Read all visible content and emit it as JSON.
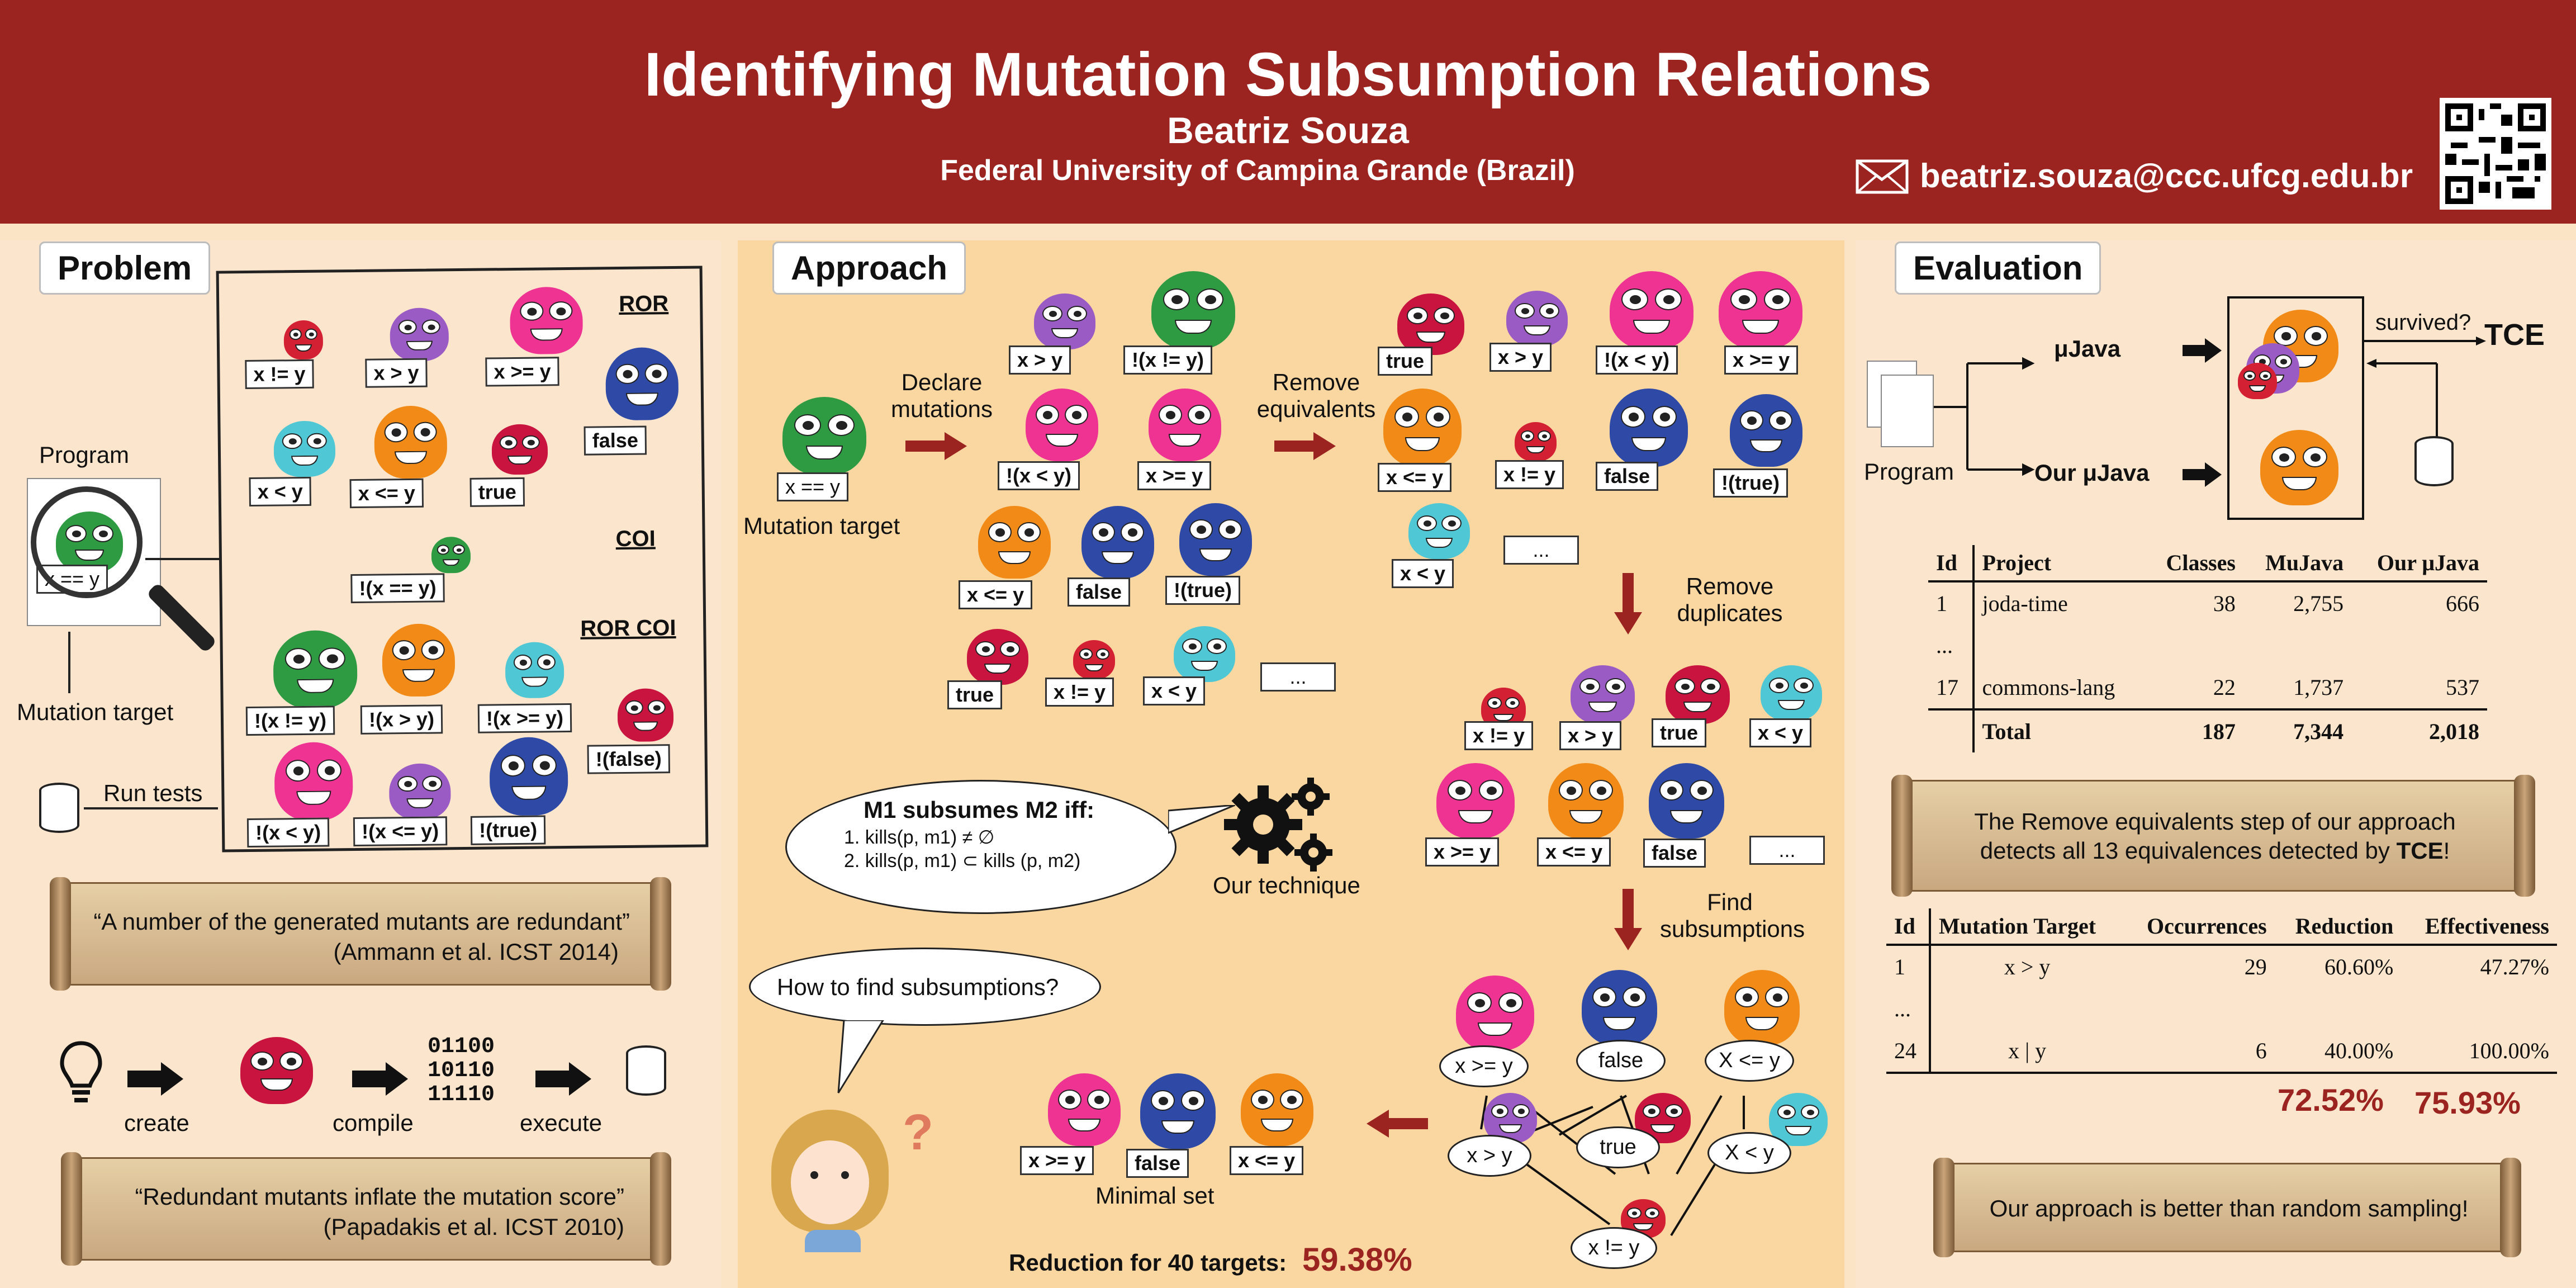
{
  "header": {
    "title": "Identifying Mutation Subsumption Relations",
    "author": "Beatriz Souza",
    "affiliation": "Federal University of Campina Grande (Brazil)",
    "email": "beatriz.souza@ccc.ufcg.edu.br"
  },
  "problem": {
    "title": "Problem",
    "program_label": "Program",
    "program_code": "x == y",
    "mutation_target_label": "Mutation target",
    "run_tests_label": "Run tests",
    "groups": [
      "ROR",
      "COI",
      "ROR COI"
    ],
    "mutants": [
      "x != y",
      "x > y",
      "x >= y",
      "false",
      "x < y",
      "x <= y",
      "true",
      "!(x == y)",
      "!(x != y)",
      "!(x > y)",
      "!(x >= y)",
      "!(false)",
      "!(x < y)",
      "!(x <= y)",
      "!(true)"
    ],
    "quote1": "“A number of the generated mutants are redundant”",
    "quote1_cite": "(Ammann et al. ICST 2014)",
    "flow": [
      "create",
      "compile",
      "execute"
    ],
    "binary": [
      "01100",
      "10110",
      "11110"
    ],
    "quote2": "“Redundant mutants inflate the mutation score”",
    "quote2_cite": "(Papadakis et al. ICST 2010)"
  },
  "approach": {
    "title": "Approach",
    "mutation_target_label": "Mutation target",
    "target_code": "x == y",
    "step1": "Declare mutations",
    "step2": "Remove equivalents",
    "step3": "Remove duplicates",
    "step4": "Find subsumptions",
    "declared": [
      "x > y",
      "!(x != y)",
      "!(x < y)",
      "x >= y",
      "x <= y",
      "false",
      "!(true)",
      "true",
      "x != y",
      "x < y",
      "..."
    ],
    "no_equiv": [
      "true",
      "x > y",
      "!(x < y)",
      "x >= y",
      "x <= y",
      "x != y",
      "false",
      "!(true)",
      "x < y",
      "..."
    ],
    "no_dup": [
      "x != y",
      "x > y",
      "true",
      "x < y",
      "x >= y",
      "x <= y",
      "false",
      "..."
    ],
    "graph_nodes": [
      "x >= y",
      "false",
      "X <= y",
      "x > y",
      "true",
      "X < y",
      "x != y"
    ],
    "definition_title": "M1 subsumes M2 iff:",
    "definition_items": [
      "1. kills(p, m1) ≠ ∅",
      "2. kills(p, m1) ⊂ kills (p, m2)"
    ],
    "technique_label": "Our technique",
    "question": "How to find subsumptions?",
    "question_mark": "?",
    "minimal": [
      "x >= y",
      "false",
      "x <= y"
    ],
    "minimal_label": "Minimal set",
    "reduction_label": "Reduction for 40 targets:",
    "reduction_value": "59.38%"
  },
  "evaluation": {
    "title": "Evaluation",
    "program_label": "Program",
    "tool1": "μJava",
    "tool2": "Our μJava",
    "survived": "survived?",
    "tce": "TCE",
    "table1": {
      "headers": [
        "Id",
        "Project",
        "Classes",
        "MuJava",
        "Our μJava"
      ],
      "rows": [
        [
          "1",
          "joda-time",
          "38",
          "2,755",
          "666"
        ],
        [
          "...",
          "",
          "",
          "",
          ""
        ],
        [
          "17",
          "commons-lang",
          "22",
          "1,737",
          "537"
        ]
      ],
      "total": [
        "",
        "Total",
        "187",
        "7,344",
        "2,018"
      ]
    },
    "scroll1_line1": "The Remove equivalents step of our approach",
    "scroll1_line2": "detects all 13 equivalences detected by",
    "scroll1_bold": "TCE",
    "scroll1_end": "!",
    "table2": {
      "headers": [
        "Id",
        "Mutation Target",
        "Occurrences",
        "Reduction",
        "Effectiveness"
      ],
      "rows": [
        [
          "1",
          "x > y",
          "29",
          "60.60%",
          "47.27%"
        ],
        [
          "...",
          "",
          "",
          "",
          ""
        ],
        [
          "24",
          "x | y",
          "6",
          "40.00%",
          "100.00%"
        ]
      ],
      "avg_reduction": "72.52%",
      "avg_effectiveness": "75.93%"
    },
    "scroll2": "Our approach is better than random sampling!"
  },
  "colors": {
    "header_bg": "#9b2421",
    "accent_red": "#9b2421",
    "approach_bg": "#fad7a0",
    "side_bg": "#fbe5cc"
  }
}
